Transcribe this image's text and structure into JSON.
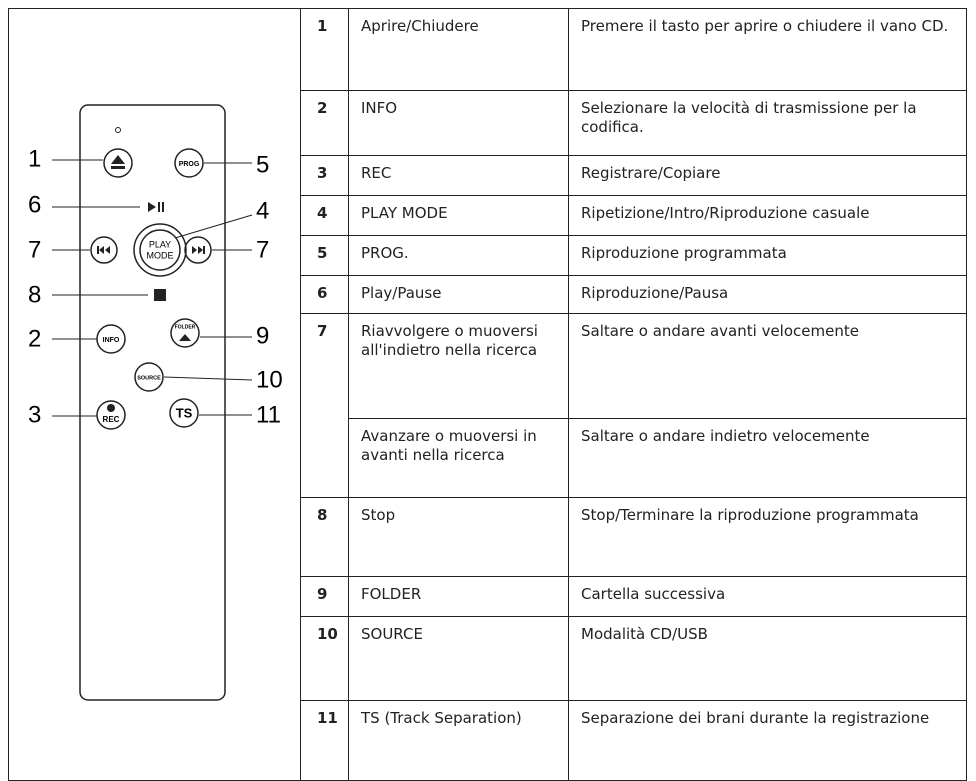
{
  "remote": {
    "callouts": [
      "1",
      "5",
      "6",
      "4",
      "7",
      "7",
      "8",
      "2",
      "9",
      "10",
      "3",
      "11"
    ],
    "buttons": {
      "prog": "PROG",
      "play_mode": [
        "PLAY",
        "MODE"
      ],
      "info": "INFO",
      "folder": "FOLDER",
      "source": "SOURCE",
      "rec": "REC",
      "ts": "TS"
    }
  },
  "table": {
    "rows": [
      {
        "number": "1",
        "name": "Aprire/Chiudere",
        "description": "Premere il tasto per aprire o chiudere il vano CD."
      },
      {
        "number": "2",
        "name": "INFO",
        "description": "Selezionare la velocità di trasmissione per la codifica."
      },
      {
        "number": "3",
        "name": "REC",
        "description": "Registrare/Copiare"
      },
      {
        "number": "4",
        "name": "PLAY MODE",
        "description": "Ripetizione/Intro/Riproduzione casuale"
      },
      {
        "number": "5",
        "name": "PROG.",
        "description": "Riproduzione programmata"
      },
      {
        "number": "6",
        "name": "Play/Pause",
        "description": "Riproduzione/Pausa"
      },
      {
        "number": "7",
        "name": "Riavvolgere o muoversi all'indietro nella ricerca",
        "description": "Saltare o andare avanti velocemente"
      },
      {
        "name": "Avanzare o muoversi in avanti nella ricerca",
        "description": "Saltare o andare indietro velocemente"
      },
      {
        "number": "8",
        "name": "Stop",
        "description": "Stop/Terminare la riproduzione programmata"
      },
      {
        "number": "9",
        "name": "FOLDER",
        "description": "Cartella successiva"
      },
      {
        "number": "10",
        "name": "SOURCE",
        "description": "Modalità CD/USB"
      },
      {
        "number": "11",
        "name": "TS (Track Separation)",
        "description": "Separazione dei brani durante la registrazione"
      }
    ]
  }
}
